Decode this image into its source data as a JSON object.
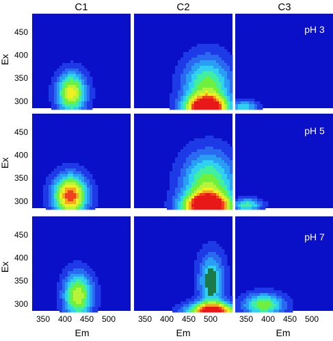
{
  "chart_data": {
    "type": "heatmap",
    "title": "",
    "xlabel": "Em",
    "ylabel": "Ex",
    "xlim": [
      325,
      550
    ],
    "ylim": [
      285,
      490
    ],
    "xticks": [
      350,
      400,
      450,
      500
    ],
    "yticks": [
      300,
      350,
      400,
      450
    ],
    "xtick_labels": [
      "350",
      "400",
      "450",
      "500"
    ],
    "ytick_labels": [
      "300",
      "350",
      "400",
      "450"
    ],
    "columns": [
      "C1",
      "C2",
      "C3"
    ],
    "rows": [
      "pH 3",
      "pH 5",
      "pH 7"
    ],
    "grid": false,
    "legend": "none",
    "colormap": [
      "#0a10c8",
      "#1e3ae6",
      "#2a6af0",
      "#2a9ef5",
      "#2fd0f0",
      "#40f0a0",
      "#6ef03c",
      "#b6f43a",
      "#f0f020",
      "#f4a820",
      "#f04020",
      "#e81818"
    ],
    "colormap_extra": {
      "dark_plateau": "#1a7a4a"
    },
    "panels": [
      [
        {
          "peaks": [
            {
              "em": 415,
              "ex": 318,
              "amp": 0.78,
              "sx": 24,
              "sy": 32
            }
          ]
        },
        {
          "peaks": [
            {
              "em": 490,
              "ex": 285,
              "amp": 1.0,
              "sx": 34,
              "sy": 18
            },
            {
              "em": 492,
              "ex": 330,
              "amp": 0.6,
              "sx": 40,
              "sy": 48
            }
          ]
        },
        {
          "peaks": [
            {
              "em": 345,
              "ex": 288,
              "amp": 0.45,
              "sx": 22,
              "sy": 10
            }
          ]
        }
      ],
      [
        {
          "peaks": [
            {
              "em": 412,
              "ex": 312,
              "amp": 0.98,
              "sx": 28,
              "sy": 32
            }
          ]
        },
        {
          "peaks": [
            {
              "em": 492,
              "ex": 288,
              "amp": 1.05,
              "sx": 38,
              "sy": 20
            },
            {
              "em": 495,
              "ex": 335,
              "amp": 0.62,
              "sx": 44,
              "sy": 52
            }
          ]
        },
        {
          "peaks": [
            {
              "em": 352,
              "ex": 292,
              "amp": 0.52,
              "sx": 24,
              "sy": 10
            }
          ]
        }
      ],
      [
        {
          "peaks": [
            {
              "em": 430,
              "ex": 318,
              "amp": 0.72,
              "sx": 24,
              "sy": 36
            }
          ]
        },
        {
          "peaks": [
            {
              "em": 505,
              "ex": 283,
              "amp": 1.05,
              "sx": 42,
              "sy": 14
            },
            {
              "em": 502,
              "ex": 350,
              "amp": 0.5,
              "sx": 22,
              "sy": 45
            }
          ]
        },
        {
          "peaks": [
            {
              "em": 390,
              "ex": 298,
              "amp": 0.62,
              "sx": 34,
              "sy": 18
            }
          ]
        }
      ]
    ]
  }
}
